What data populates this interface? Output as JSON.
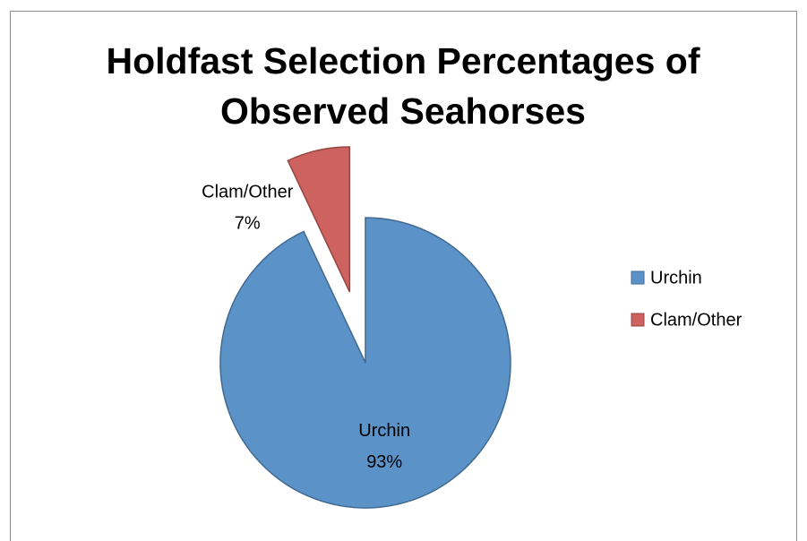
{
  "chart_data": {
    "type": "pie",
    "title": "Holdfast Selection Percentages of Observed Seahorses",
    "categories": [
      "Urchin",
      "Clam/Other"
    ],
    "values": [
      93,
      7
    ],
    "value_labels": [
      "93%",
      "7%"
    ],
    "colors": [
      "#5b93c9",
      "#cd625e"
    ],
    "exploded": [
      false,
      true
    ],
    "legend": "right"
  }
}
